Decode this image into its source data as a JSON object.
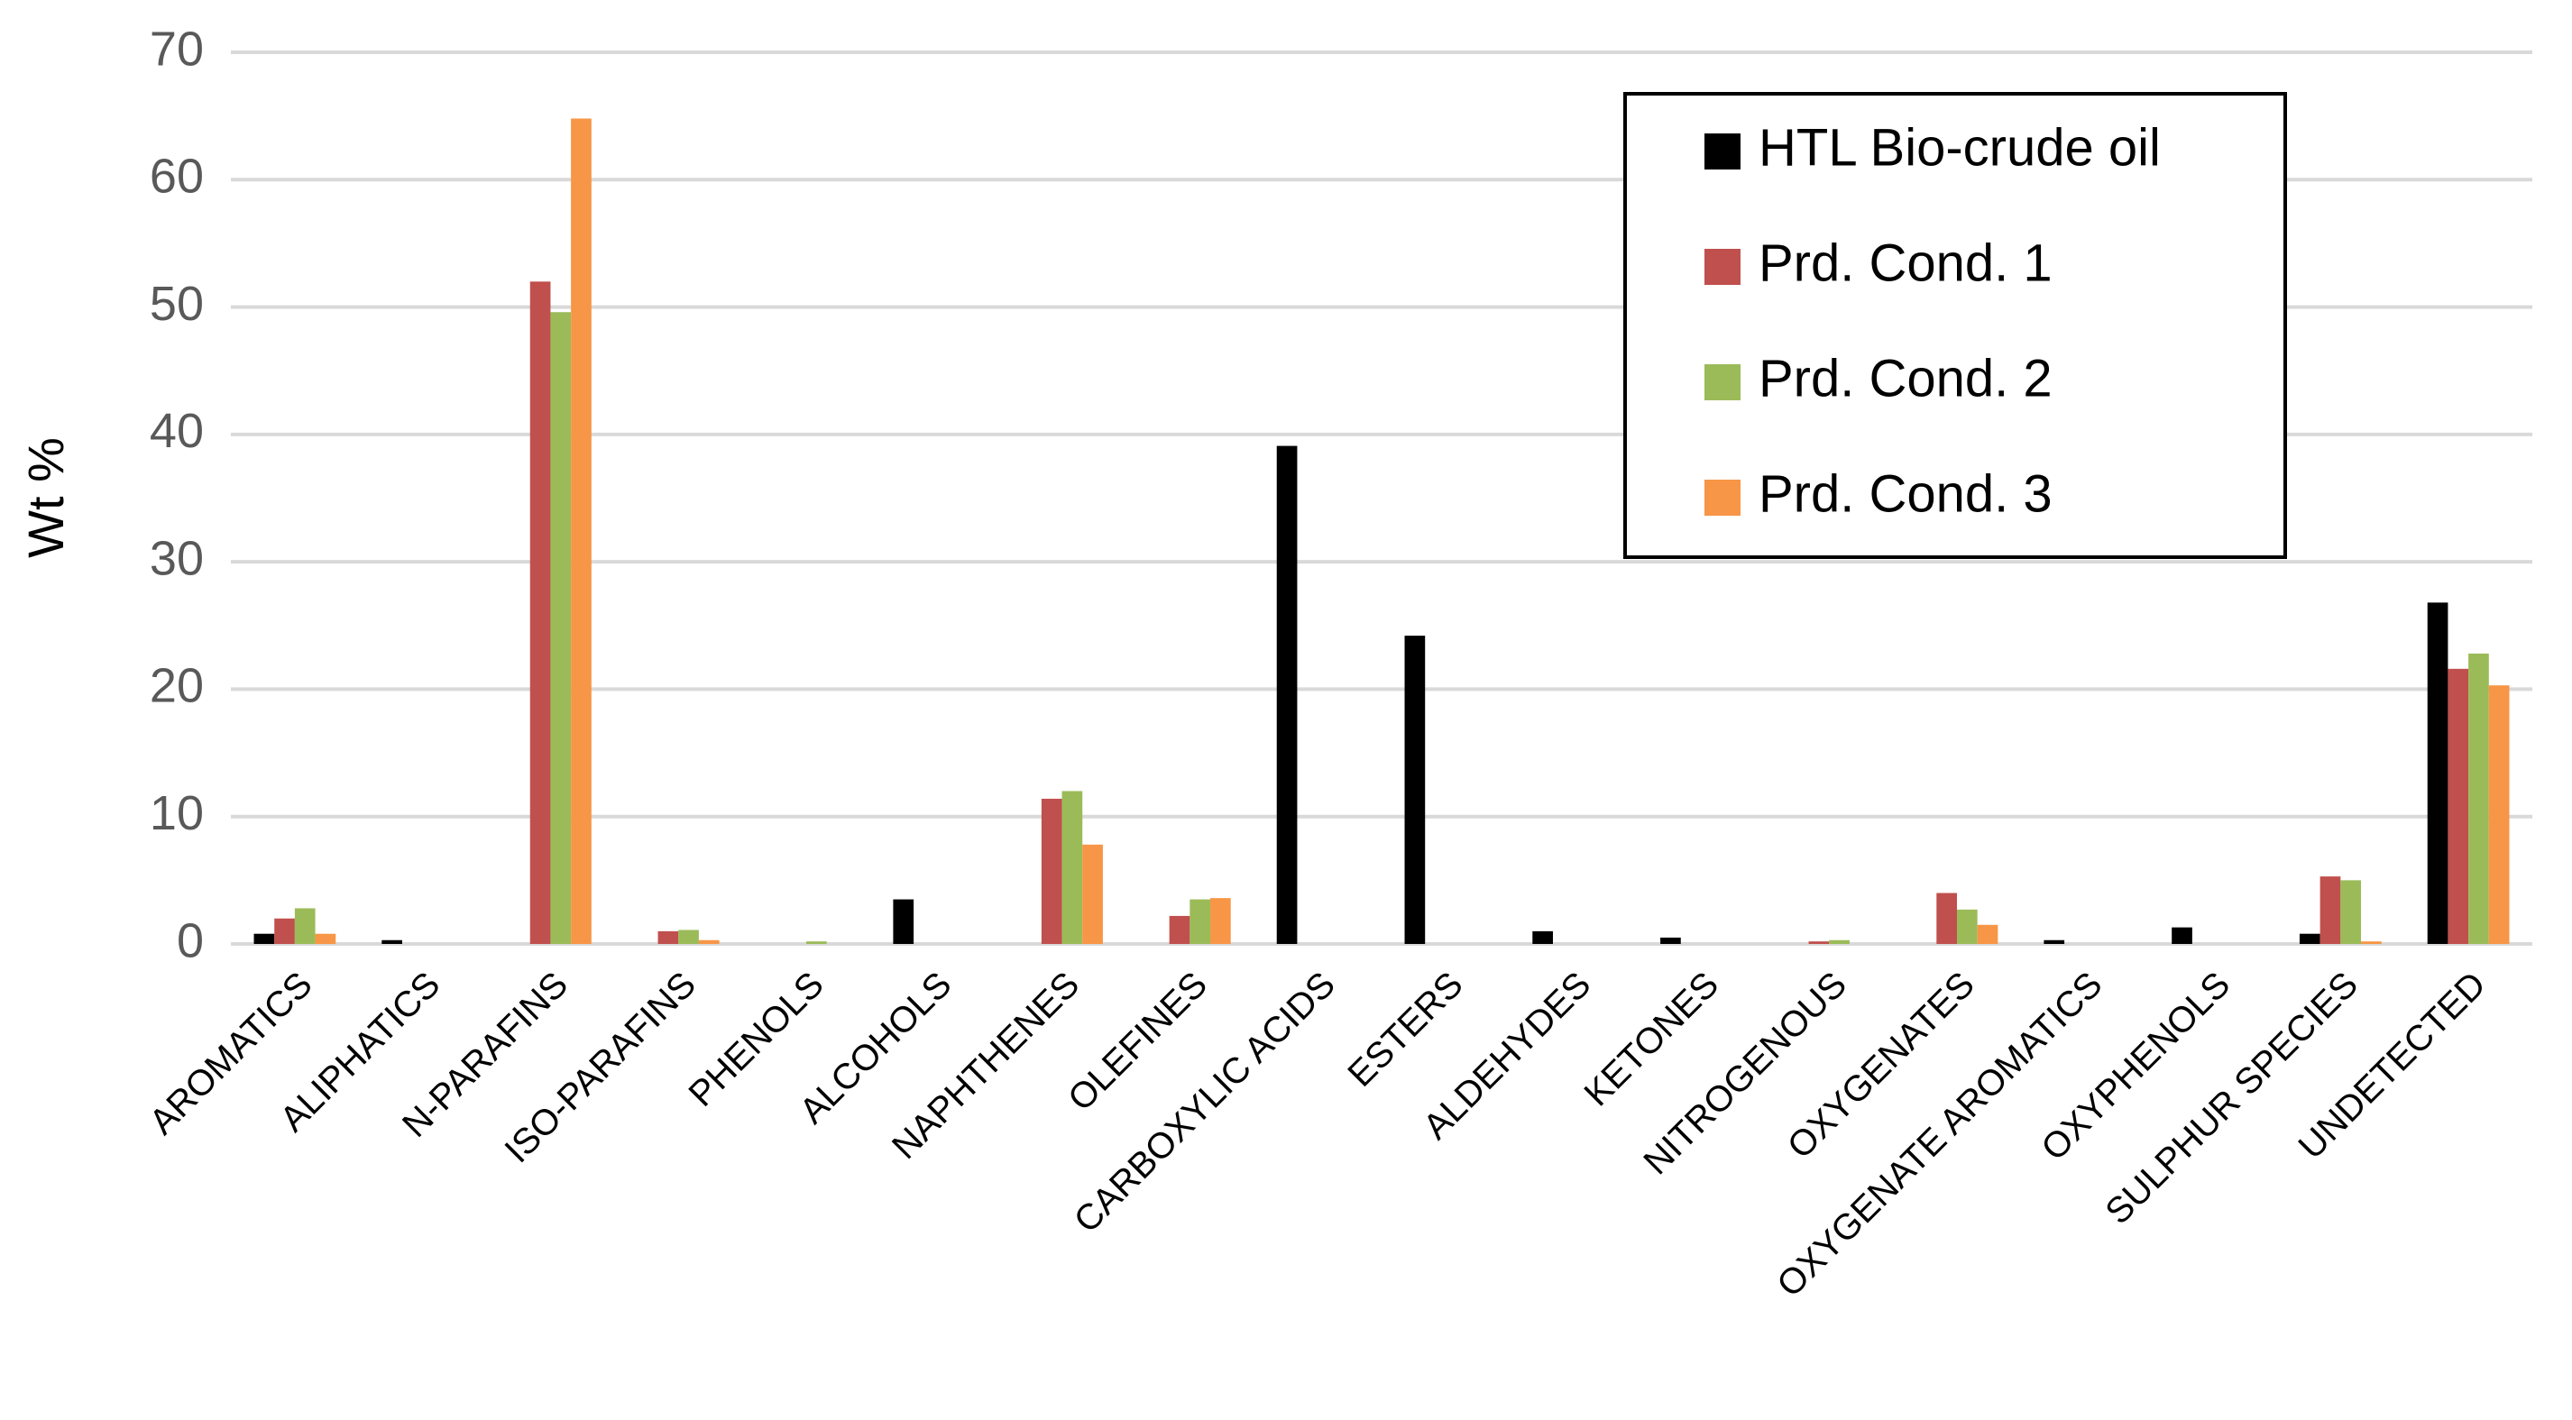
{
  "chart_data": {
    "type": "bar",
    "y_label": "Wt %",
    "categories": [
      "AROMATICS",
      "ALIPHATICS",
      "N-PARAFINS",
      "ISO-PARAFINS",
      "PHENOLS",
      "ALCOHOLS",
      "NAPHTHENES",
      "OLEFINES",
      "CARBOXYLIC ACIDS",
      "ESTERS",
      "ALDEHYDES",
      "KETONES",
      "NITROGENOUS",
      "OXYGENATES",
      "OXYGENATE AROMATICS",
      "OXYPHENOLS",
      "SULPHUR SPECIES",
      "UNDETECTED"
    ],
    "series": [
      {
        "name": "HTL Bio-crude oil",
        "color": "#000000",
        "values": [
          0.8,
          0.3,
          0,
          0,
          0,
          3.5,
          0,
          0,
          39.1,
          24.2,
          1.0,
          0.5,
          0,
          0,
          0.3,
          1.3,
          0.8,
          26.8
        ]
      },
      {
        "name": "Prd. Cond. 1",
        "color": "#c0504d",
        "values": [
          2.0,
          0,
          52.0,
          1.0,
          0,
          0,
          11.4,
          2.2,
          0,
          0,
          0,
          0,
          0.2,
          4.0,
          0,
          0,
          5.3,
          21.6
        ]
      },
      {
        "name": "Prd. Cond. 2",
        "color": "#9bbb59",
        "values": [
          2.8,
          0,
          49.6,
          1.1,
          0.2,
          0,
          12.0,
          3.5,
          0,
          0,
          0,
          0,
          0.3,
          2.7,
          0,
          0,
          5.0,
          22.8
        ]
      },
      {
        "name": "Prd. Cond. 3",
        "color": "#f79646",
        "values": [
          0.8,
          0,
          64.8,
          0.3,
          0,
          0,
          7.8,
          3.6,
          0,
          0,
          0,
          0,
          0,
          1.5,
          0,
          0,
          0.2,
          20.3
        ]
      }
    ],
    "ylim": [
      0,
      70
    ],
    "yticks": [
      0,
      10,
      20,
      30,
      40,
      50,
      60,
      70
    ],
    "grid": true,
    "legend": "top-right"
  }
}
